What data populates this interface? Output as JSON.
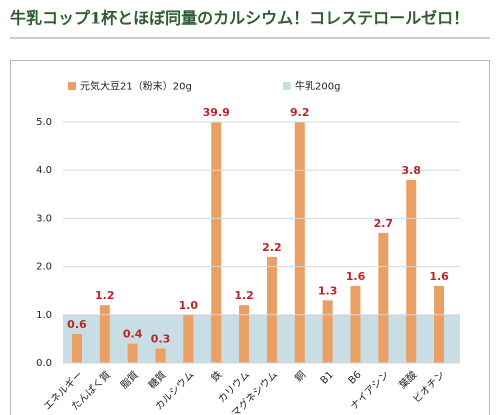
{
  "chart_data": {
    "type": "bar",
    "title": "牛乳コップ1杯とほぼ同量のカルシウム！コレステロールゼロ！",
    "categories": [
      "エネルギー",
      "たんぱく質",
      "脂質",
      "糖質",
      "カルシウム",
      "鉄",
      "カリウム",
      "マグネシウム",
      "銅",
      "B1",
      "B6",
      "ナイアシン",
      "葉酸",
      "ビオチン"
    ],
    "series": [
      {
        "name": "元気大豆21（粉末）20g",
        "color": "#e8a064",
        "values": [
          0.6,
          1.2,
          0.4,
          0.3,
          1.0,
          39.9,
          1.2,
          2.2,
          9.2,
          1.3,
          1.6,
          2.7,
          3.8,
          1.6
        ],
        "value_labels": [
          "0.6",
          "1.2",
          "0.4",
          "0.3",
          "1.0",
          "39.9",
          "1.2",
          "2.2",
          "9.2",
          "1.3",
          "1.6",
          "2.7",
          "3.8",
          "1.6"
        ]
      },
      {
        "name": "牛乳200g",
        "color": "#c9dde4",
        "values": [
          1,
          1,
          1,
          1,
          1,
          1,
          1,
          1,
          1,
          1,
          1,
          1,
          1,
          1
        ]
      }
    ],
    "ylim": [
      0,
      5
    ],
    "yticks": [
      {
        "value": 0,
        "label": "0.0"
      },
      {
        "value": 1,
        "label": "1.0"
      },
      {
        "value": 2,
        "label": "2.0"
      },
      {
        "value": 3,
        "label": "3.0"
      },
      {
        "value": 4,
        "label": "4.0"
      },
      {
        "value": 5,
        "label": "5.0"
      }
    ],
    "grid": true
  }
}
